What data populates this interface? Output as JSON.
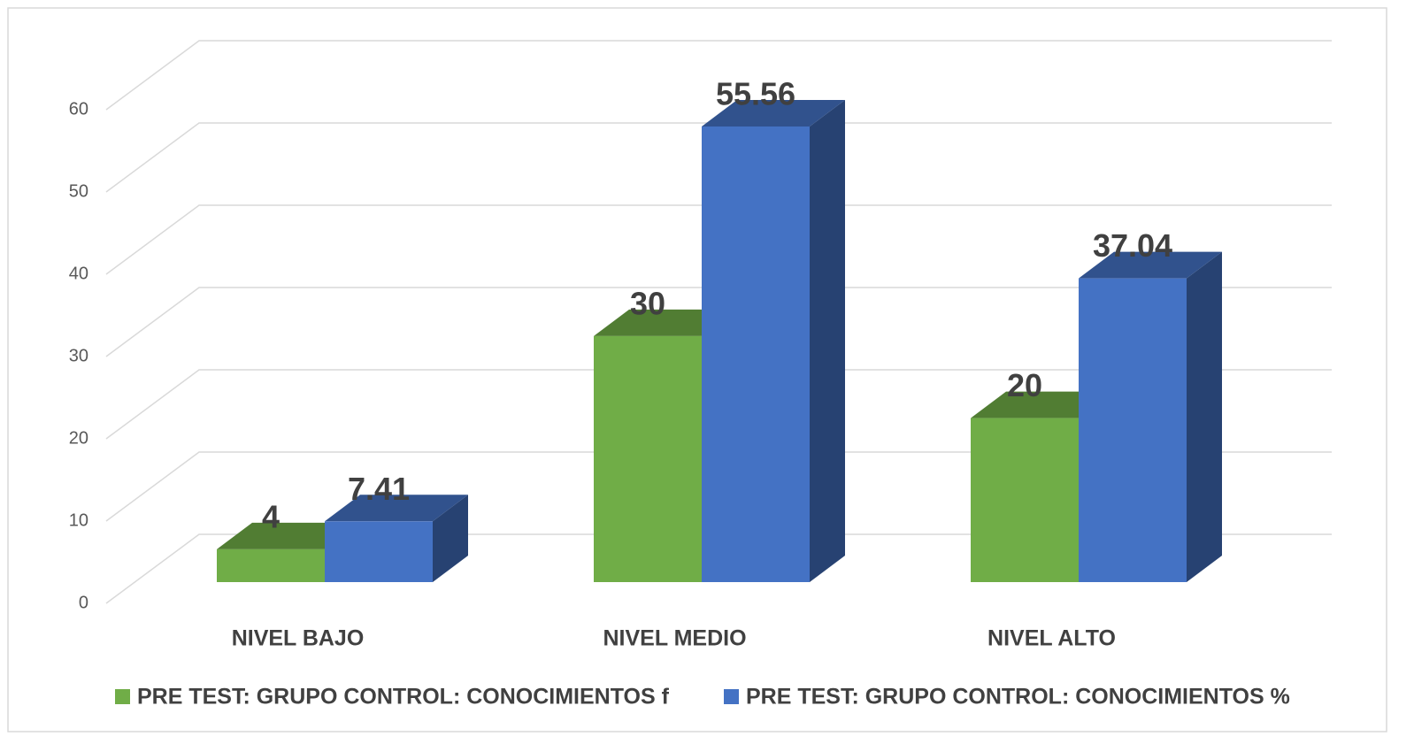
{
  "chart_data": {
    "type": "bar3d",
    "categories": [
      "NIVEL BAJO",
      "NIVEL MEDIO",
      "NIVEL ALTO"
    ],
    "series": [
      {
        "name": "PRE TEST: GRUPO CONTROL: CONOCIMIENTOS f",
        "color": "#70ad47",
        "values": [
          4,
          30,
          20
        ]
      },
      {
        "name": "PRE TEST: GRUPO CONTROL: CONOCIMIENTOS %",
        "color": "#4472c4",
        "values": [
          7.41,
          55.56,
          37.04
        ]
      }
    ],
    "ylim": [
      0,
      60
    ],
    "yticks": [
      0,
      10,
      20,
      30,
      40,
      50,
      60
    ],
    "grid": true,
    "legend": "bottom"
  }
}
